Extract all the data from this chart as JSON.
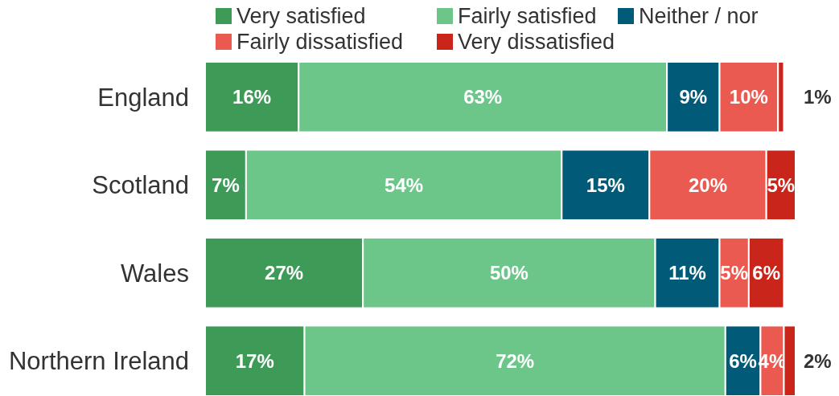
{
  "chart_data": {
    "type": "bar",
    "orientation": "horizontal",
    "stacked": true,
    "categories": [
      "England",
      "Scotland",
      "Wales",
      "Northern Ireland"
    ],
    "tick_labels": "y",
    "legend": "top",
    "series": [
      {
        "name": "Very satisfied",
        "color": "#3d9a57",
        "values": [
          16,
          7,
          27,
          17
        ],
        "value_labels": [
          "16%",
          "7%",
          "27%",
          "17%"
        ]
      },
      {
        "name": "Fairly satisfied",
        "color": "#6cc689",
        "values": [
          63,
          54,
          50,
          72
        ],
        "value_labels": [
          "63%",
          "54%",
          "50%",
          "72%"
        ]
      },
      {
        "name": "Neither / nor",
        "color": "#005a78",
        "values": [
          9,
          15,
          11,
          6
        ],
        "value_labels": [
          "9%",
          "15%",
          "11%",
          "6%"
        ]
      },
      {
        "name": "Fairly dissatisfied",
        "color": "#eb5a50",
        "values": [
          10,
          20,
          5,
          4
        ],
        "value_labels": [
          "10%",
          "20%",
          "5%",
          "4%"
        ]
      },
      {
        "name": "Very dissatisfied",
        "color": "#c9251b",
        "values": [
          1,
          5,
          6,
          2
        ],
        "value_labels": [
          "1%",
          "5%",
          "6%",
          "2%"
        ]
      }
    ]
  }
}
